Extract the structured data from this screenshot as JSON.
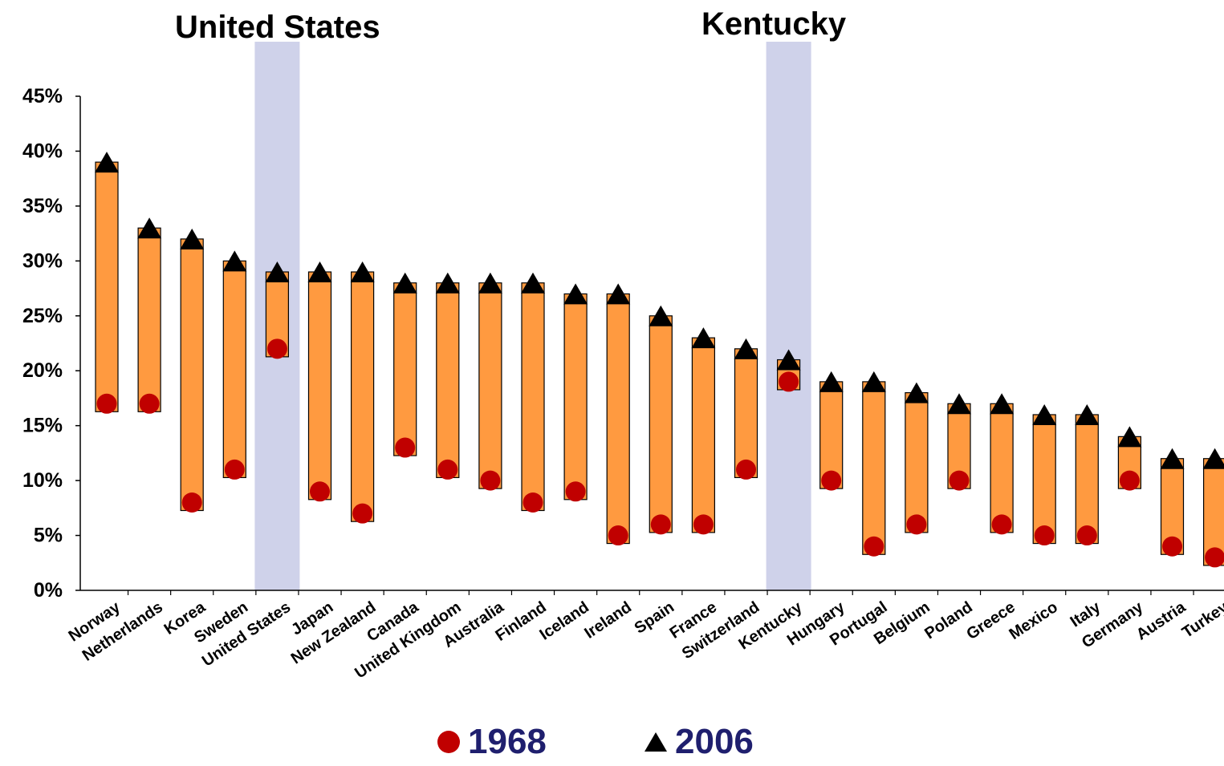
{
  "header": {
    "left_label": "United States",
    "right_label": "Kentucky"
  },
  "legend": {
    "series1_label": "1968",
    "series2_label": "2006"
  },
  "colors": {
    "bar": "#ff9a40",
    "bar_outline": "#000000",
    "highlight": "#cfd2ea",
    "marker_1968": "#c00000",
    "marker_2006": "#000000",
    "legend_text": "#1f1f6e"
  },
  "chart_data": {
    "type": "range-bar",
    "title": "",
    "xlabel": "",
    "ylabel": "",
    "ylim": [
      0,
      45
    ],
    "yticks": [
      "0%",
      "5%",
      "10%",
      "15%",
      "20%",
      "25%",
      "30%",
      "35%",
      "40%",
      "45%"
    ],
    "ytick_values": [
      0,
      5,
      10,
      15,
      20,
      25,
      30,
      35,
      40,
      45
    ],
    "highlighted_categories": [
      "United States",
      "Kentucky"
    ],
    "categories": [
      "Norway",
      "Netherlands",
      "Korea",
      "Sweden",
      "United States",
      "Japan",
      "New Zealand",
      "Canada",
      "United Kingdom",
      "Australia",
      "Finland",
      "Iceland",
      "Ireland",
      "Spain",
      "France",
      "Switzerland",
      "Kentucky",
      "Hungary",
      "Portugal",
      "Belgium",
      "Poland",
      "Greece",
      "Mexico",
      "Italy",
      "Germany",
      "Austria",
      "Turkey"
    ],
    "series": [
      {
        "name": "1968",
        "marker": "circle",
        "values": [
          17,
          17,
          8,
          11,
          22,
          9,
          7,
          13,
          11,
          10,
          8,
          9,
          5,
          6,
          6,
          11,
          19,
          10,
          4,
          6,
          10,
          6,
          5,
          5,
          10,
          4,
          3
        ]
      },
      {
        "name": "2006",
        "marker": "triangle",
        "values": [
          39,
          33,
          32,
          30,
          29,
          29,
          29,
          28,
          28,
          28,
          28,
          27,
          27,
          25,
          23,
          22,
          21,
          19,
          19,
          18,
          17,
          17,
          16,
          16,
          14,
          12,
          12
        ]
      }
    ]
  }
}
